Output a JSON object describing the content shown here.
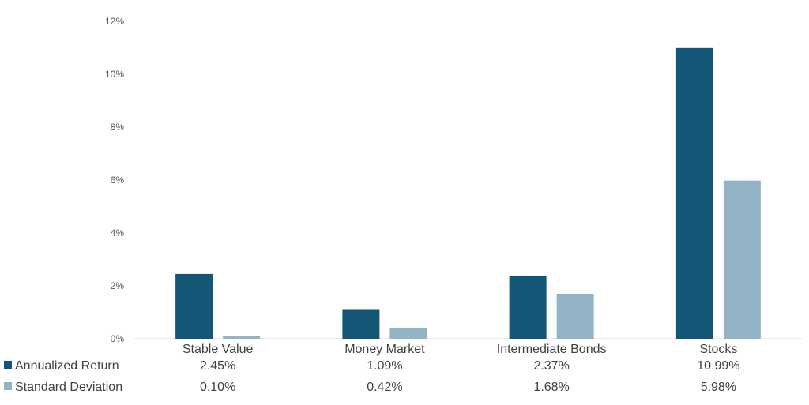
{
  "chart_data": {
    "type": "bar",
    "categories": [
      "Stable Value",
      "Money Market",
      "Intermediate Bonds",
      "Stocks"
    ],
    "series": [
      {
        "name": "Annualized Return",
        "values": [
          2.45,
          1.09,
          2.37,
          10.99
        ],
        "labels": [
          "2.45%",
          "1.09%",
          "2.37%",
          "10.99%"
        ],
        "color": "#135675"
      },
      {
        "name": "Standard Deviation",
        "values": [
          0.1,
          0.42,
          1.68,
          5.98
        ],
        "labels": [
          "0.10%",
          "0.42%",
          "1.68%",
          "5.98%"
        ],
        "color": "#91b3c3"
      }
    ],
    "y_ticks": [
      "0%",
      "2%",
      "4%",
      "6%",
      "8%",
      "10%",
      "12%"
    ],
    "ylim": [
      0,
      12
    ],
    "grid": false,
    "legend": "data-table-bottom-left"
  }
}
